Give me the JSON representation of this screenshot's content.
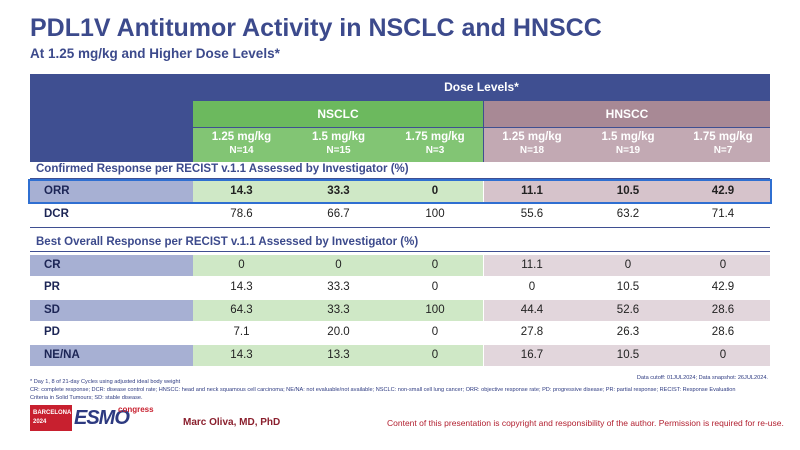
{
  "title": "PDL1V Antitumor Activity in NSCLC and HNSCC",
  "subtitle": "At 1.25 mg/kg and Higher Dose Levels*",
  "table": {
    "dose_levels_title": "Dose Levels*",
    "nsclc_label": "NSCLC",
    "hnscc_label": "HNSCC",
    "dose_columns": [
      {
        "dose": "1.25 mg/kg",
        "n": "N=14"
      },
      {
        "dose": "1.5 mg/kg",
        "n": "N=15"
      },
      {
        "dose": "1.75 mg/kg",
        "n": "N=3"
      },
      {
        "dose": "1.25 mg/kg",
        "n": "N=18"
      },
      {
        "dose": "1.5 mg/kg",
        "n": "N=19"
      },
      {
        "dose": "1.75 mg/kg",
        "n": "N=7"
      }
    ],
    "section1_title": "Confirmed Response per RECIST v.1.1 Assessed by Investigator (%)",
    "section1_rows": [
      {
        "label": "ORR",
        "values": [
          "14.3",
          "33.3",
          "0",
          "11.1",
          "10.5",
          "42.9"
        ]
      },
      {
        "label": "DCR",
        "values": [
          "78.6",
          "66.7",
          "100",
          "55.6",
          "63.2",
          "71.4"
        ]
      }
    ],
    "section2_title": "Best Overall Response per RECIST v.1.1 Assessed by Investigator (%)",
    "section2_rows": [
      {
        "label": "CR",
        "values": [
          "0",
          "0",
          "0",
          "11.1",
          "0",
          "0"
        ]
      },
      {
        "label": "PR",
        "values": [
          "14.3",
          "33.3",
          "0",
          "0",
          "10.5",
          "42.9"
        ]
      },
      {
        "label": "SD",
        "values": [
          "64.3",
          "33.3",
          "100",
          "44.4",
          "52.6",
          "28.6"
        ]
      },
      {
        "label": "PD",
        "values": [
          "7.1",
          "20.0",
          "0",
          "27.8",
          "26.3",
          "28.6"
        ]
      },
      {
        "label": "NE/NA",
        "values": [
          "14.3",
          "13.3",
          "0",
          "16.7",
          "10.5",
          "0"
        ]
      }
    ]
  },
  "footnote_line1": "* Day 1, 8 of 21-day Cycles using adjusted ideal body weight",
  "footnote_line2": "CR: complete response; DCR: disease control rate; HNSCC: head and neck squamous cell carcinoma; NE/NA: not evaluable/not available; NSCLC: non-small cell lung cancer; ORR: objective response rate; PD: progressive disease; PR: partial response; RECIST: Response Evaluation",
  "footnote_line3": "Criteria in Solid Tumours; SD: stable disease.",
  "cutoff": "Data cutoff: 01JUL2024; Data snapshot: 26JUL2024.",
  "logo": {
    "city": "BARCELONA",
    "year": "2024",
    "name": "ESMO",
    "suffix": "congress"
  },
  "presenter": "Marc Oliva, MD, PhD",
  "copyright": "Content of this presentation is copyright and responsibility of the author. Permission is required for re-use.",
  "colors": {
    "navy": "#3f4f91",
    "green": "#6cb95e",
    "mauve": "#a88995",
    "highlight": "#2f6fd1"
  }
}
